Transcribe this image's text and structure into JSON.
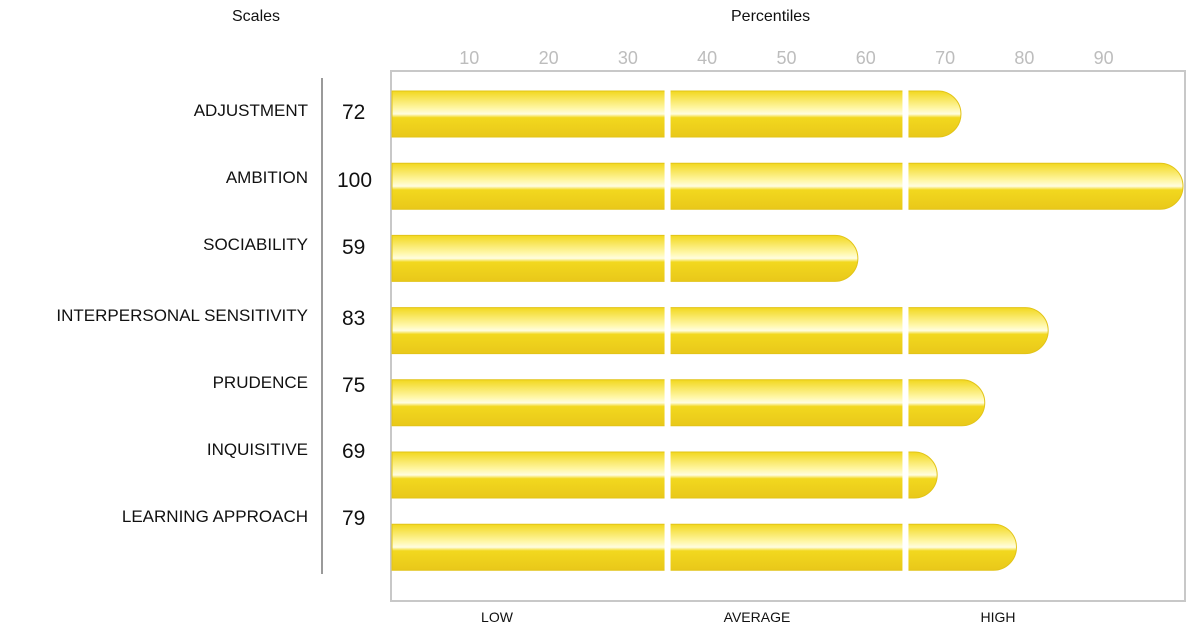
{
  "chart_data": {
    "type": "bar",
    "orientation": "horizontal",
    "x_header": "Percentiles",
    "y_header": "Scales",
    "categories": [
      "ADJUSTMENT",
      "AMBITION",
      "SOCIABILITY",
      "INTERPERSONAL SENSITIVITY",
      "PRUDENCE",
      "INQUISITIVE",
      "LEARNING APPROACH"
    ],
    "values": [
      72,
      100,
      59,
      83,
      75,
      69,
      79
    ],
    "xlim": [
      0,
      100
    ],
    "x_ticks": [
      10,
      20,
      30,
      40,
      50,
      60,
      70,
      80,
      90
    ],
    "bands": [
      {
        "label": "LOW",
        "range": [
          0,
          35
        ]
      },
      {
        "label": "AVERAGE",
        "range": [
          35,
          65
        ]
      },
      {
        "label": "HIGH",
        "range": [
          65,
          100
        ]
      }
    ],
    "bar_color": "#F2D81E",
    "bar_highlight_color": "#FFF7A8",
    "grid": false
  }
}
